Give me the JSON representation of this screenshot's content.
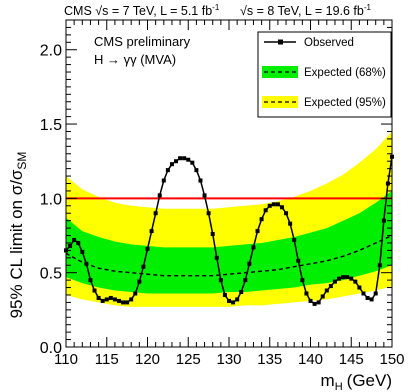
{
  "header": {
    "text7": "CMS √s = 7 TeV, L = 5.1 fb",
    "text7_sup": "-1",
    "text8": "√s = 8 TeV, L = 19.6 fb",
    "text8_sup": "-1"
  },
  "annotation": {
    "line1": "CMS preliminary",
    "line2": "H → γγ   (MVA)"
  },
  "colors": {
    "band68": "#00ee00",
    "band95": "#ffff00",
    "observed": "#000000",
    "reference": "#ff0000"
  },
  "chart_data": {
    "type": "line",
    "xlabel": "m",
    "xlabel_sub": "H",
    "xlabel_unit": "(GeV)",
    "ylabel": "95% CL limit on σ/σ",
    "ylabel_sub": "SM",
    "xlim": [
      110,
      150
    ],
    "ylim": [
      0,
      2.2
    ],
    "xticks": [
      "110",
      "115",
      "120",
      "125",
      "130",
      "135",
      "140",
      "145",
      "150"
    ],
    "yticks": [
      "0.0",
      "0.5",
      "1.0",
      "1.5",
      "2.0"
    ],
    "grid": false,
    "legend_position": "top-right",
    "legend": [
      {
        "label": "Observed",
        "style": "line-marker"
      },
      {
        "label": "Expected (68%)",
        "style": "band68"
      },
      {
        "label": "Expected (95%)",
        "style": "band95"
      }
    ],
    "reference_line": 1.0,
    "x": [
      110,
      112,
      114,
      116,
      118,
      120,
      122,
      124,
      126,
      128,
      130,
      132,
      134,
      136,
      138,
      140,
      142,
      144,
      146,
      148,
      150
    ],
    "expected": [
      0.63,
      0.57,
      0.53,
      0.51,
      0.5,
      0.49,
      0.48,
      0.48,
      0.48,
      0.48,
      0.49,
      0.5,
      0.51,
      0.52,
      0.54,
      0.56,
      0.58,
      0.61,
      0.65,
      0.7,
      0.75
    ],
    "band68_low": [
      0.47,
      0.43,
      0.4,
      0.38,
      0.37,
      0.36,
      0.36,
      0.36,
      0.36,
      0.36,
      0.37,
      0.37,
      0.38,
      0.39,
      0.4,
      0.42,
      0.43,
      0.45,
      0.48,
      0.51,
      0.55
    ],
    "band68_high": [
      0.87,
      0.78,
      0.74,
      0.71,
      0.69,
      0.68,
      0.67,
      0.67,
      0.67,
      0.67,
      0.68,
      0.69,
      0.7,
      0.72,
      0.74,
      0.77,
      0.8,
      0.85,
      0.9,
      0.97,
      1.05
    ],
    "band95_low": [
      0.35,
      0.32,
      0.3,
      0.28,
      0.27,
      0.27,
      0.27,
      0.27,
      0.27,
      0.27,
      0.27,
      0.28,
      0.28,
      0.29,
      0.3,
      0.31,
      0.32,
      0.34,
      0.36,
      0.38,
      0.41
    ],
    "band95_high": [
      1.15,
      1.06,
      1.01,
      0.97,
      0.95,
      0.94,
      0.93,
      0.93,
      0.93,
      0.93,
      0.94,
      0.95,
      0.96,
      0.98,
      1.01,
      1.05,
      1.1,
      1.16,
      1.24,
      1.33,
      1.45
    ],
    "observed": {
      "x": [
        110,
        110.5,
        111,
        111.5,
        112,
        112.5,
        113,
        113.5,
        114,
        114.5,
        115,
        115.5,
        116,
        116.5,
        117,
        117.5,
        118,
        118.5,
        119,
        119.5,
        120,
        120.5,
        121,
        121.5,
        122,
        122.5,
        123,
        123.5,
        124,
        124.5,
        125,
        125.5,
        126,
        126.5,
        127,
        127.5,
        128,
        128.5,
        129,
        129.5,
        130,
        130.5,
        131,
        131.5,
        132,
        132.5,
        133,
        133.5,
        134,
        134.5,
        135,
        135.5,
        136,
        136.5,
        137,
        137.5,
        138,
        138.5,
        139,
        139.5,
        140,
        140.5,
        141,
        141.5,
        142,
        142.5,
        143,
        143.5,
        144,
        144.5,
        145,
        145.5,
        146,
        146.5,
        147,
        147.5,
        148,
        148.5,
        149,
        149.5,
        150
      ],
      "y": [
        0.65,
        0.68,
        0.72,
        0.7,
        0.64,
        0.56,
        0.45,
        0.38,
        0.33,
        0.31,
        0.32,
        0.33,
        0.32,
        0.31,
        0.3,
        0.3,
        0.32,
        0.36,
        0.44,
        0.54,
        0.66,
        0.78,
        0.9,
        1.02,
        1.12,
        1.19,
        1.23,
        1.25,
        1.27,
        1.27,
        1.26,
        1.24,
        1.19,
        1.12,
        1.02,
        0.9,
        0.76,
        0.6,
        0.45,
        0.35,
        0.31,
        0.3,
        0.32,
        0.37,
        0.45,
        0.56,
        0.67,
        0.78,
        0.86,
        0.92,
        0.95,
        0.96,
        0.96,
        0.94,
        0.9,
        0.83,
        0.72,
        0.58,
        0.45,
        0.36,
        0.31,
        0.29,
        0.3,
        0.34,
        0.38,
        0.41,
        0.44,
        0.46,
        0.47,
        0.47,
        0.46,
        0.44,
        0.4,
        0.36,
        0.33,
        0.32,
        0.36,
        0.55,
        0.85,
        1.1,
        1.28
      ]
    }
  }
}
